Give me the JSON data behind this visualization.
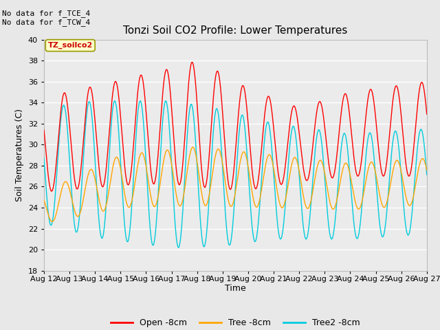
{
  "title": "Tonzi Soil CO2 Profile: Lower Temperatures",
  "xlabel": "Time",
  "ylabel": "Soil Temperatures (C)",
  "ylim": [
    18,
    40
  ],
  "annotation_text": "No data for f_TCE_4\nNo data for f_TCW_4",
  "legend_label_text": "TZ_soilco2",
  "x_tick_labels": [
    "Aug 12",
    "Aug 13",
    "Aug 14",
    "Aug 15",
    "Aug 16",
    "Aug 17",
    "Aug 18",
    "Aug 19",
    "Aug 20",
    "Aug 21",
    "Aug 22",
    "Aug 23",
    "Aug 24",
    "Aug 25",
    "Aug 26",
    "Aug 27"
  ],
  "open_color": "#FF0000",
  "tree_color": "#FFA500",
  "tree2_color": "#00CCDD",
  "bg_color": "#E8E8E8",
  "plot_bg_color": "#EBEBEB",
  "legend_line_labels": [
    "Open -8cm",
    "Tree -8cm",
    "Tree2 -8cm"
  ],
  "title_fontsize": 11,
  "axis_label_fontsize": 9,
  "tick_fontsize": 8
}
